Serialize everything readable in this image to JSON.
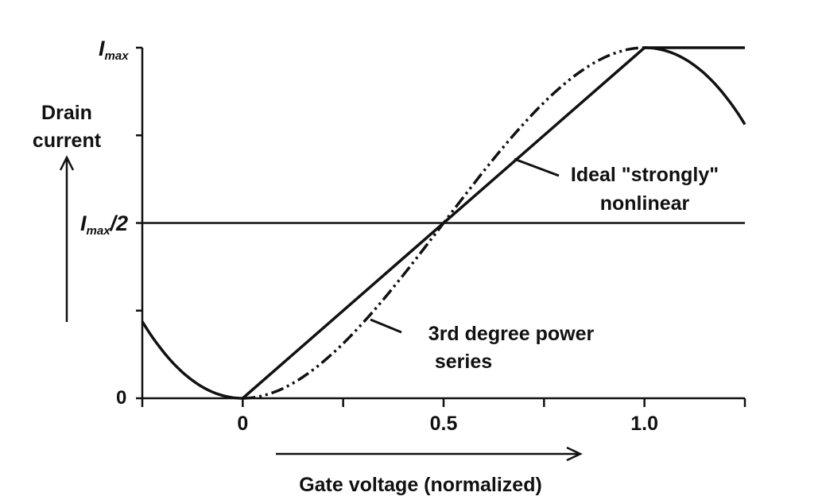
{
  "chart_data": {
    "type": "line",
    "xlabel": "Gate voltage (normalized)",
    "ylabel_line1": "Drain",
    "ylabel_line2": "current",
    "xlim": [
      -0.25,
      1.25
    ],
    "ylim": [
      0,
      1
    ],
    "x_ticks": [
      -0.25,
      0,
      0.25,
      0.5,
      0.75,
      1.0,
      1.25
    ],
    "x_tick_labels": [
      {
        "value": 0,
        "text": "0"
      },
      {
        "value": 0.5,
        "text": "0.5"
      },
      {
        "value": 1.0,
        "text": "1.0"
      }
    ],
    "y_ticks": [
      0,
      0.25,
      0.5,
      0.75,
      1.0
    ],
    "y_tick_labels": {
      "zero": "0",
      "half_main": "I",
      "half_sub": "max",
      "half_suffix": "/2",
      "max_main": "I",
      "max_sub": "max"
    },
    "reference_line_y": 0.5,
    "series": [
      {
        "name": "Ideal \"strongly\" nonlinear",
        "label_line1": "Ideal \"strongly\"",
        "label_line2": "nonlinear",
        "style": "solid",
        "x": [
          0,
          1.0,
          1.25
        ],
        "y": [
          0,
          1.0,
          1.0
        ]
      },
      {
        "name": "3rd degree power series",
        "label_line1": "3rd degree power",
        "label_line2": "series",
        "style": "dash-dot-dot",
        "formula": "y = 3x^2 - 2x^3 for 0 <= x <= 1",
        "x_range": [
          0,
          1.0
        ]
      },
      {
        "name": "power series continuation",
        "style": "solid",
        "formula": "y = 3x^2 - 2x^3 outside 0..1",
        "x_ranges": [
          [
            -0.25,
            0
          ],
          [
            1.0,
            1.25
          ]
        ]
      }
    ],
    "colors": {
      "line": "#111111",
      "background": "#ffffff"
    },
    "grid": false
  }
}
